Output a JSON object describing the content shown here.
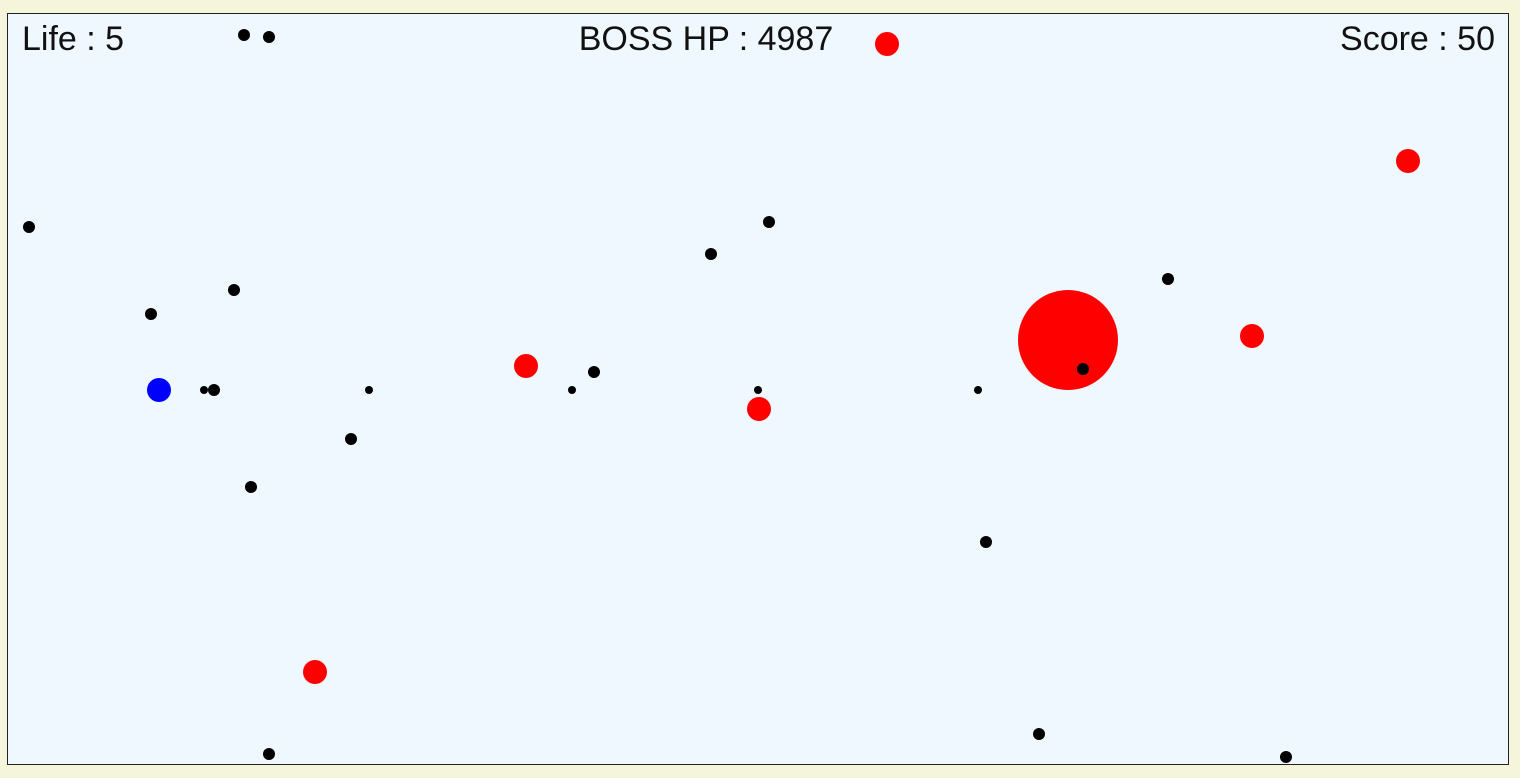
{
  "hud": {
    "life_text": "Life : 5",
    "boss_hp_text": "BOSS HP : 4987",
    "score_text": "Score : 50"
  },
  "colors": {
    "page_background": "#f5f5dc",
    "field_background": "#f0f8ff",
    "player": "#0000ff",
    "boss": "#ff0000",
    "enemy": "#ff0000",
    "bullet": "#000000"
  }
}
